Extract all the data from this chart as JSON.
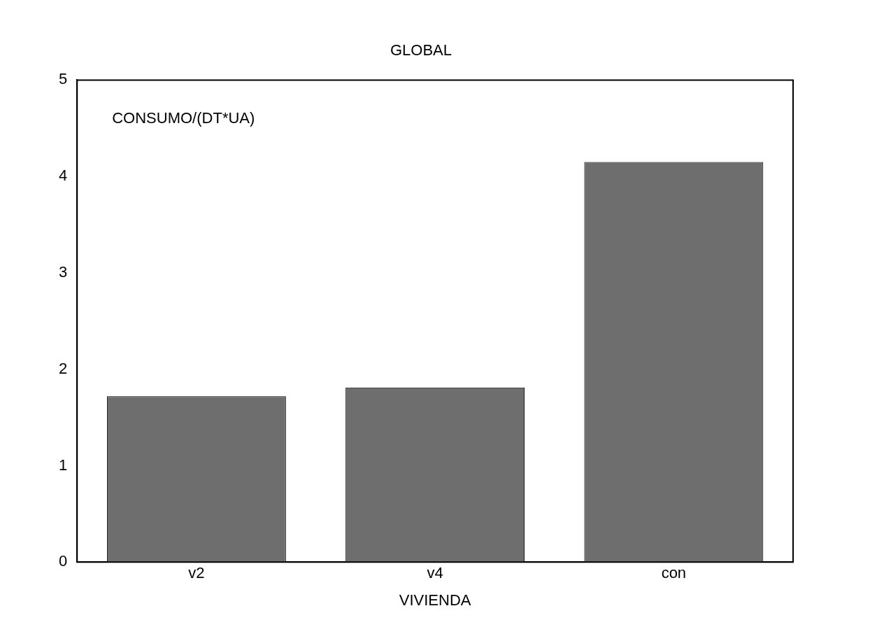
{
  "chart_data": {
    "type": "bar",
    "title": "GLOBAL",
    "xlabel": "VIVIENDA",
    "ylabel": "CONSUMO/(DT*UA)",
    "categories": [
      "v2",
      "v4",
      "con"
    ],
    "values": [
      1.72,
      1.81,
      4.15
    ],
    "color": "#6e6e6e",
    "ylim": [
      0,
      5
    ],
    "yticks": [
      0,
      1,
      2,
      3,
      4,
      5
    ],
    "grid": false,
    "legend": false
  }
}
